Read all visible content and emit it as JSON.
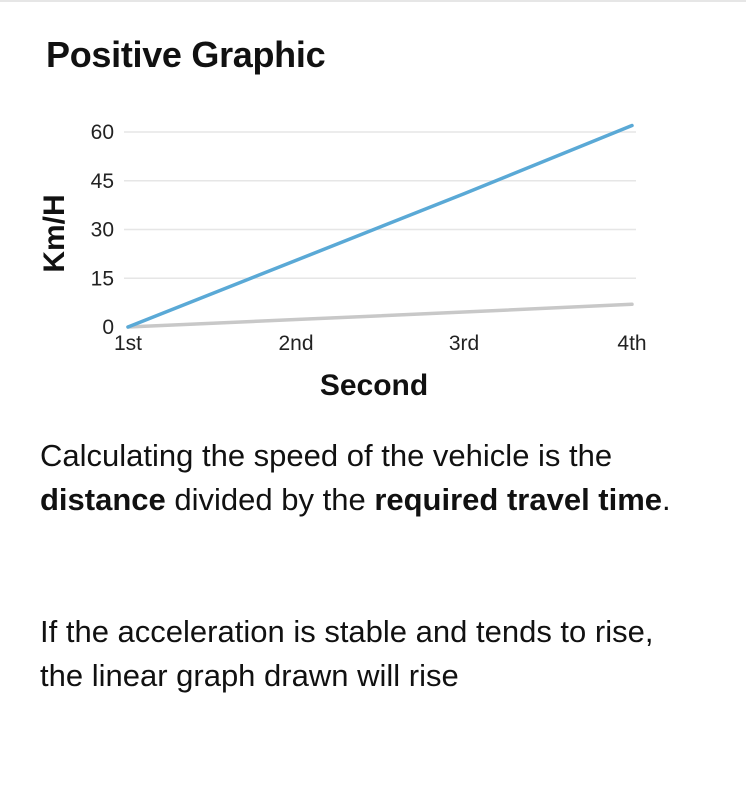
{
  "card": {
    "title": "Positive Graphic"
  },
  "chart_data": {
    "type": "line",
    "categories": [
      "1st",
      "2nd",
      "3rd",
      "4th"
    ],
    "xlabel": "Second",
    "ylabel": "Km/H",
    "yticks": [
      0,
      15,
      30,
      45,
      60
    ],
    "ylim": [
      0,
      60
    ],
    "grid": true,
    "legend": "none",
    "series": [
      {
        "color": "#5aa9d6",
        "values": [
          0,
          20.5,
          41,
          62
        ]
      },
      {
        "color": "#c8c8c8",
        "values": [
          0,
          2.3,
          4.6,
          7
        ]
      }
    ]
  },
  "description": {
    "p1": {
      "s1": "Calculating the speed of the vehicle is the ",
      "b1": "distance",
      "s2": " divided by the ",
      "b2": "required travel time",
      "s3": "."
    },
    "p2": "If the acceleration is stable and tends to rise, the linear graph drawn will rise"
  }
}
